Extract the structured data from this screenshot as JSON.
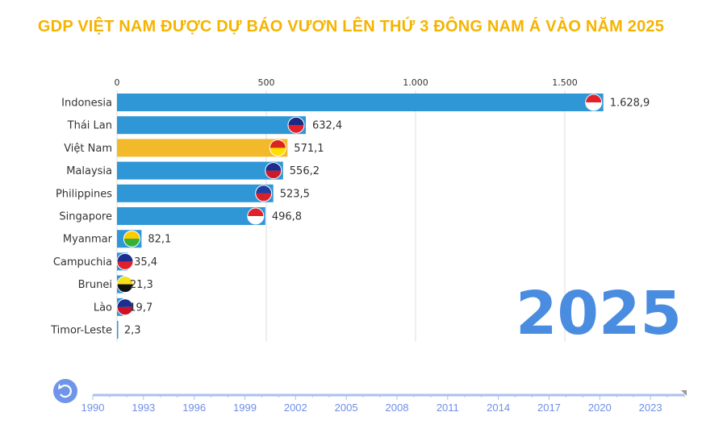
{
  "title": "GDP VIỆT NAM ĐƯỢC DỰ BÁO VƯƠN LÊN THỨ 3 ĐÔNG NAM Á VÀO NĂM 2025",
  "current_year": "2025",
  "colors": {
    "bar": "#2f97d6",
    "highlight": "#f2b92b",
    "title": "#f5b400",
    "year": "#4a8de0",
    "timeline": "#6f8fe6"
  },
  "chart_data": {
    "type": "bar",
    "orientation": "horizontal",
    "xlim": [
      0,
      1700
    ],
    "x_ticks": [
      0,
      500,
      1000,
      1500
    ],
    "x_tick_labels": [
      "0",
      "500",
      "1.000",
      "1.500"
    ],
    "grid": true,
    "categories": [
      "Indonesia",
      "Thái Lan",
      "Việt Nam",
      "Malaysia",
      "Philippines",
      "Singapore",
      "Myanmar",
      "Campuchia",
      "Brunei",
      "Lào",
      "Timor-Leste"
    ],
    "values": [
      1628.9,
      632.4,
      571.1,
      556.2,
      523.5,
      496.8,
      82.1,
      35.4,
      21.3,
      19.7,
      2.3
    ],
    "value_labels": [
      "1.628,9",
      "632,4",
      "571,1",
      "556,2",
      "523,5",
      "496,8",
      "82,1",
      "35,4",
      "21,3",
      "19,7",
      "2,3"
    ],
    "highlight": "Việt Nam",
    "flags": [
      [
        "#e0202a",
        "#ffffff"
      ],
      [
        "#1b2a80",
        "#e0202a"
      ],
      [
        "#da251d",
        "#ffde00"
      ],
      [
        "#1a2f8f",
        "#cc1a2a"
      ],
      [
        "#1d3fa0",
        "#d91f2a"
      ],
      [
        "#e0202a",
        "#ffffff"
      ],
      [
        "#fecb00",
        "#34b233"
      ],
      [
        "#1a2f8f",
        "#e0202a"
      ],
      [
        "#f7e017",
        "#111111"
      ],
      [
        "#1a2f8f",
        "#ce1126"
      ],
      [
        "#dc241f",
        "#111111"
      ]
    ]
  },
  "timeline": {
    "start": 1990,
    "end": 2025,
    "current": 2025,
    "labels": [
      "1990",
      "1993",
      "1996",
      "1999",
      "2002",
      "2005",
      "2008",
      "2011",
      "2014",
      "2017",
      "2020",
      "2023"
    ]
  },
  "replay_icon": "replay-icon"
}
